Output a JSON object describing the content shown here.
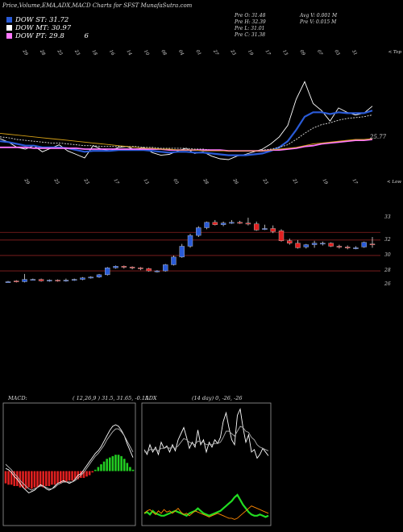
{
  "header": {
    "title": "Price,Volume,EMA,ADX,MACD Charts for SFST MunafaSutra.com",
    "legend": [
      {
        "label": "DOW ST: 31.72",
        "color": "#2a5bd7"
      },
      {
        "label": "DOW MT: 30.97",
        "color": "#ffffff"
      },
      {
        "label": "DOW PT: 29.8",
        "color": "#ff77ff",
        "extra": "6"
      }
    ],
    "prev": [
      "Pre   O: 31.48",
      "Pre   H: 32.39",
      "Pre   L: 31.01",
      "Pre   C: 31.38"
    ],
    "avg": [
      "Avg V: 0.001 M",
      "Pre   V: 0.015 M"
    ]
  },
  "chart_data": [
    {
      "type": "line",
      "name": "ema-panel",
      "top_dates": [
        "29",
        "28",
        "25",
        "23",
        "18",
        "16",
        "14",
        "10",
        "08",
        "04",
        "01",
        "27",
        "23",
        "19",
        "17",
        "13",
        "09",
        "07",
        "03",
        "31"
      ],
      "top_right_label": "< Top",
      "price_label": "25.77",
      "series": [
        {
          "color": "#ffffff",
          "values": [
            28.0,
            27.6,
            27.0,
            26.8,
            27.2,
            26.5,
            26.9,
            27.3,
            26.6,
            26.2,
            25.8,
            27.2,
            26.8,
            26.6,
            27.0,
            27.1,
            26.7,
            27.0,
            26.4,
            26.1,
            26.2,
            26.6,
            26.9,
            26.3,
            26.5,
            26.0,
            25.7,
            25.6,
            26.0,
            26.2,
            26.5,
            26.8,
            27.4,
            28.2,
            29.5,
            32.5,
            34.5,
            32.0,
            31.2,
            30.0,
            31.5,
            31.0,
            30.7,
            30.9,
            31.7
          ]
        },
        {
          "color": "#2a5bd7",
          "values": [
            27.7,
            27.6,
            27.4,
            27.2,
            27.2,
            27.0,
            27.0,
            27.0,
            26.9,
            26.7,
            26.5,
            26.6,
            26.6,
            26.6,
            26.7,
            26.7,
            26.7,
            26.7,
            26.6,
            26.5,
            26.4,
            26.5,
            26.5,
            26.4,
            26.4,
            26.3,
            26.2,
            26.1,
            26.1,
            26.1,
            26.2,
            26.3,
            26.6,
            27.0,
            27.7,
            29.0,
            30.5,
            31.0,
            31.0,
            30.8,
            31.0,
            30.9,
            30.9,
            30.9,
            31.2
          ]
        },
        {
          "color": "#dddddd",
          "values": [
            28.2,
            28.1,
            27.9,
            27.8,
            27.7,
            27.6,
            27.5,
            27.5,
            27.4,
            27.3,
            27.2,
            27.2,
            27.1,
            27.1,
            27.1,
            27.1,
            27.1,
            27.0,
            27.0,
            26.9,
            26.9,
            26.9,
            26.9,
            26.8,
            26.8,
            26.7,
            26.7,
            26.6,
            26.6,
            26.6,
            26.6,
            26.7,
            26.8,
            27.0,
            27.3,
            27.9,
            28.6,
            29.2,
            29.6,
            29.8,
            30.1,
            30.3,
            30.4,
            30.5,
            30.7
          ]
        },
        {
          "color": "#ff77ff",
          "values": [
            27.0,
            27.0,
            27.0,
            27.0,
            26.9,
            26.9,
            26.9,
            26.9,
            26.9,
            26.9,
            26.8,
            26.8,
            26.8,
            26.8,
            26.8,
            26.8,
            26.8,
            26.8,
            26.8,
            26.8,
            26.7,
            26.7,
            26.7,
            26.7,
            26.7,
            26.7,
            26.7,
            26.6,
            26.6,
            26.6,
            26.6,
            26.6,
            26.7,
            26.7,
            26.8,
            26.9,
            27.1,
            27.2,
            27.4,
            27.5,
            27.6,
            27.7,
            27.8,
            27.8,
            27.9
          ]
        },
        {
          "color": "#d4a017",
          "values": [
            28.6,
            28.5,
            28.4,
            28.3,
            28.2,
            28.1,
            28.0,
            27.9,
            27.8,
            27.7,
            27.6,
            27.5,
            27.4,
            27.3,
            27.2,
            27.1,
            27.0,
            26.9,
            26.9,
            26.8,
            26.8,
            26.7,
            26.7,
            26.7,
            26.6,
            26.6,
            26.6,
            26.6,
            26.6,
            26.6,
            26.6,
            26.6,
            26.7,
            26.8,
            26.9,
            27.0,
            27.2,
            27.4,
            27.5,
            27.6,
            27.7,
            27.8,
            27.9,
            27.9,
            28.0
          ]
        }
      ],
      "ylim": [
        24.5,
        36
      ]
    },
    {
      "type": "candlestick",
      "name": "price-panel",
      "top_dates": [
        "29",
        "25",
        "23",
        "17",
        "13",
        "05",
        "28",
        "26",
        "23",
        "21",
        "19",
        "17"
      ],
      "top_right_label": "< Low",
      "ylim": [
        25.5,
        37
      ],
      "gridlines": [
        33,
        32,
        30,
        28
      ],
      "tick_labels": [
        "33",
        "32",
        "30",
        "28",
        "26"
      ],
      "candles": [
        {
          "o": 26.6,
          "h": 26.7,
          "l": 26.5,
          "c": 26.6
        },
        {
          "o": 26.7,
          "h": 26.8,
          "l": 26.5,
          "c": 26.6
        },
        {
          "o": 26.6,
          "h": 27.6,
          "l": 26.5,
          "c": 26.9
        },
        {
          "o": 26.9,
          "h": 27.0,
          "l": 26.8,
          "c": 26.9
        },
        {
          "o": 26.9,
          "h": 27.0,
          "l": 26.6,
          "c": 26.7
        },
        {
          "o": 26.7,
          "h": 26.9,
          "l": 26.6,
          "c": 26.8
        },
        {
          "o": 26.8,
          "h": 26.9,
          "l": 26.6,
          "c": 26.7
        },
        {
          "o": 26.8,
          "h": 27.0,
          "l": 26.6,
          "c": 26.8
        },
        {
          "o": 26.8,
          "h": 27.0,
          "l": 26.7,
          "c": 26.9
        },
        {
          "o": 26.9,
          "h": 27.2,
          "l": 26.8,
          "c": 27.1
        },
        {
          "o": 27.1,
          "h": 27.3,
          "l": 27.0,
          "c": 27.2
        },
        {
          "o": 27.2,
          "h": 27.6,
          "l": 27.1,
          "c": 27.5
        },
        {
          "o": 27.5,
          "h": 28.5,
          "l": 27.4,
          "c": 28.4
        },
        {
          "o": 28.4,
          "h": 28.7,
          "l": 28.3,
          "c": 28.6
        },
        {
          "o": 28.6,
          "h": 28.7,
          "l": 28.3,
          "c": 28.5
        },
        {
          "o": 28.5,
          "h": 28.6,
          "l": 28.2,
          "c": 28.4
        },
        {
          "o": 28.4,
          "h": 28.5,
          "l": 28.1,
          "c": 28.3
        },
        {
          "o": 28.3,
          "h": 28.4,
          "l": 27.9,
          "c": 28.0
        },
        {
          "o": 27.9,
          "h": 28.1,
          "l": 27.8,
          "c": 28.0
        },
        {
          "o": 28.0,
          "h": 28.9,
          "l": 27.9,
          "c": 28.8
        },
        {
          "o": 28.8,
          "h": 30.0,
          "l": 28.7,
          "c": 29.8
        },
        {
          "o": 29.8,
          "h": 31.5,
          "l": 29.7,
          "c": 31.2
        },
        {
          "o": 31.2,
          "h": 32.8,
          "l": 31.0,
          "c": 32.6
        },
        {
          "o": 32.6,
          "h": 33.8,
          "l": 32.4,
          "c": 33.6
        },
        {
          "o": 33.6,
          "h": 34.4,
          "l": 33.4,
          "c": 34.3
        },
        {
          "o": 34.3,
          "h": 34.6,
          "l": 33.9,
          "c": 34.0
        },
        {
          "o": 34.0,
          "h": 34.4,
          "l": 33.8,
          "c": 34.2
        },
        {
          "o": 34.2,
          "h": 34.6,
          "l": 34.1,
          "c": 34.3
        },
        {
          "o": 34.3,
          "h": 34.5,
          "l": 34.1,
          "c": 34.2
        },
        {
          "o": 34.2,
          "h": 34.9,
          "l": 33.9,
          "c": 34.1
        },
        {
          "o": 34.1,
          "h": 34.4,
          "l": 33.2,
          "c": 33.3
        },
        {
          "o": 33.4,
          "h": 34.0,
          "l": 33.3,
          "c": 33.5
        },
        {
          "o": 33.5,
          "h": 33.9,
          "l": 32.9,
          "c": 33.1
        },
        {
          "o": 33.2,
          "h": 33.4,
          "l": 31.8,
          "c": 31.9
        },
        {
          "o": 31.9,
          "h": 32.2,
          "l": 31.4,
          "c": 31.6
        },
        {
          "o": 31.6,
          "h": 32.0,
          "l": 30.9,
          "c": 31.0
        },
        {
          "o": 31.1,
          "h": 31.5,
          "l": 30.9,
          "c": 31.4
        },
        {
          "o": 31.4,
          "h": 31.9,
          "l": 31.0,
          "c": 31.6
        },
        {
          "o": 31.6,
          "h": 31.8,
          "l": 31.3,
          "c": 31.6
        },
        {
          "o": 31.6,
          "h": 31.7,
          "l": 31.1,
          "c": 31.2
        },
        {
          "o": 31.2,
          "h": 31.4,
          "l": 30.9,
          "c": 31.1
        },
        {
          "o": 31.1,
          "h": 31.3,
          "l": 30.8,
          "c": 31.0
        },
        {
          "o": 31.0,
          "h": 31.2,
          "l": 30.8,
          "c": 31.0
        },
        {
          "o": 31.1,
          "h": 31.8,
          "l": 31.0,
          "c": 31.7
        },
        {
          "o": 31.5,
          "h": 32.4,
          "l": 31.0,
          "c": 31.4
        }
      ]
    },
    {
      "type": "bar",
      "name": "macd-panel",
      "title": "MACD:",
      "params": "( 12,26,9 ) 31.5, 31.65, -0.15",
      "values": [
        -0.9,
        -1.0,
        -1.0,
        -1.1,
        -1.1,
        -1.2,
        -1.2,
        -1.3,
        -1.2,
        -1.3,
        -1.2,
        -1.2,
        -1.1,
        -1.2,
        -1.1,
        -1.1,
        -1.0,
        -1.0,
        -0.9,
        -0.9,
        -0.8,
        -0.8,
        -0.7,
        -0.7,
        -0.6,
        -0.6,
        -0.5,
        -0.5,
        -0.4,
        -0.3,
        -0.1,
        0.1,
        0.3,
        0.5,
        0.7,
        0.9,
        1.0,
        1.1,
        1.2,
        1.2,
        1.1,
        0.9,
        0.6,
        0.3,
        0.1
      ],
      "lines": [
        {
          "color": "#ffffff",
          "values": [
            0.2,
            0.1,
            -0.1,
            -0.4,
            -0.6,
            -0.9,
            -1.2,
            -1.4,
            -1.6,
            -1.5,
            -1.4,
            -1.2,
            -1.0,
            -1.1,
            -1.3,
            -1.4,
            -1.3,
            -1.1,
            -0.9,
            -0.8,
            -0.7,
            -0.8,
            -0.9,
            -0.8,
            -0.6,
            -0.3,
            -0.2,
            0.1,
            0.4,
            0.7,
            1.0,
            1.3,
            1.5,
            1.8,
            2.2,
            2.6,
            3.0,
            3.3,
            3.4,
            3.3,
            3.0,
            2.6,
            2.0,
            1.5,
            1.0
          ]
        },
        {
          "color": "#bbbbbb",
          "values": [
            0.5,
            0.3,
            0.1,
            -0.2,
            -0.4,
            -0.7,
            -0.9,
            -1.1,
            -1.3,
            -1.4,
            -1.3,
            -1.2,
            -1.1,
            -1.1,
            -1.2,
            -1.3,
            -1.3,
            -1.2,
            -1.0,
            -0.9,
            -0.8,
            -0.8,
            -0.8,
            -0.8,
            -0.7,
            -0.5,
            -0.3,
            -0.1,
            0.2,
            0.5,
            0.8,
            1.1,
            1.3,
            1.6,
            1.9,
            2.3,
            2.6,
            2.9,
            3.1,
            3.1,
            2.9,
            2.6,
            2.2,
            1.8,
            1.4
          ]
        }
      ],
      "ylim": [
        -4,
        5
      ]
    },
    {
      "type": "line",
      "name": "adx-panel",
      "title": "ADX",
      "params": "(14  day) 0,  -26,  -26",
      "series": [
        {
          "color": "#ffffff",
          "values": [
            62,
            58,
            66,
            60,
            64,
            58,
            68,
            63,
            65,
            60,
            66,
            61,
            70,
            75,
            80,
            72,
            63,
            68,
            64,
            78,
            66,
            70,
            60,
            68,
            64,
            70,
            67,
            72,
            85,
            92,
            80,
            70,
            66,
            90,
            95,
            80,
            68,
            74,
            60,
            62,
            55,
            58,
            63,
            60,
            57
          ]
        },
        {
          "color": "#aaaaaa",
          "values": [
            60,
            60,
            62,
            62,
            62,
            61,
            63,
            63,
            64,
            63,
            64,
            63,
            65,
            68,
            71,
            70,
            68,
            67,
            66,
            69,
            68,
            68,
            66,
            66,
            66,
            67,
            67,
            68,
            72,
            77,
            77,
            75,
            73,
            77,
            81,
            80,
            77,
            76,
            72,
            70,
            66,
            64,
            63,
            62,
            61
          ]
        },
        {
          "color": "#22dd22",
          "values": [
            10,
            11,
            9,
            12,
            10,
            9,
            8,
            8,
            9,
            10,
            11,
            12,
            11,
            10,
            9,
            8,
            10,
            11,
            12,
            14,
            12,
            10,
            9,
            8,
            9,
            10,
            11,
            12,
            14,
            16,
            18,
            20,
            23,
            25,
            21,
            17,
            14,
            11,
            9,
            8,
            8,
            9,
            8,
            7,
            8
          ]
        },
        {
          "color": "#ff8800",
          "values": [
            10,
            12,
            13,
            11,
            9,
            12,
            10,
            13,
            11,
            12,
            10,
            12,
            14,
            11,
            9,
            10,
            8,
            10,
            12,
            11,
            10,
            9,
            8,
            7,
            8,
            9,
            10,
            9,
            8,
            7,
            6,
            6,
            5,
            6,
            8,
            10,
            12,
            14,
            16,
            15,
            14,
            13,
            12,
            11,
            10
          ]
        }
      ],
      "ylim": [
        0,
        100
      ]
    }
  ]
}
